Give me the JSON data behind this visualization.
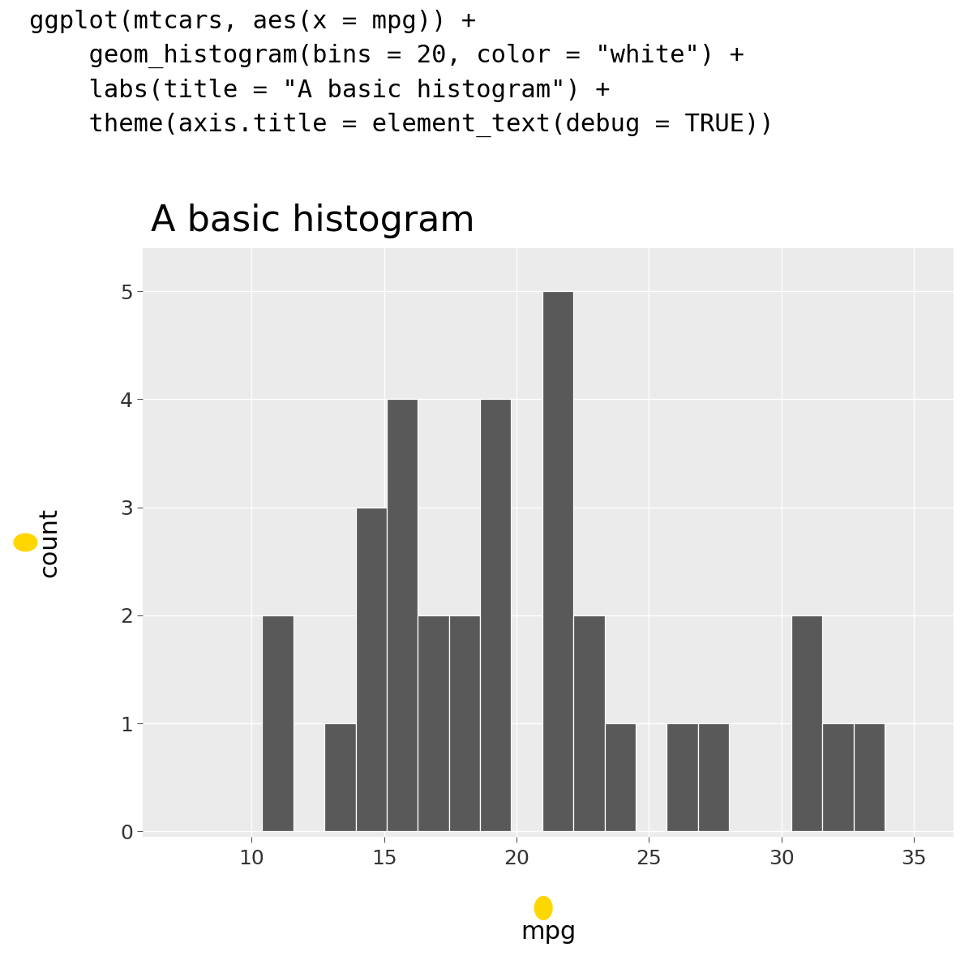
{
  "code_lines": [
    "ggplot(mtcars, aes(x = mpg)) +",
    "    geom_histogram(bins = 20, color = \"white\") +",
    "    labs(title = \"A basic histogram\") +",
    "    theme(axis.title = element_text(debug = TRUE))"
  ],
  "title": "A basic histogram",
  "xlabel": "mpg",
  "ylabel": "count",
  "bar_color": "#595959",
  "bar_edge_color": "white",
  "panel_bg": "#EBEBEB",
  "plot_bg": "#FFFFFF",
  "grid_color": "#FFFFFF",
  "ylabel_bg": "#FAFAE8",
  "xlabel_bg": "#FAFAE8",
  "dot_color": "#FFD700",
  "xlim": [
    5.9,
    36.5
  ],
  "ylim": [
    -0.05,
    5.4
  ],
  "xticks": [
    10,
    15,
    20,
    25,
    30,
    35
  ],
  "yticks": [
    0,
    1,
    2,
    3,
    4,
    5
  ],
  "mpg_data": [
    21.0,
    21.0,
    22.8,
    21.4,
    18.7,
    18.1,
    14.3,
    24.4,
    22.8,
    19.2,
    17.8,
    16.4,
    17.3,
    15.2,
    10.4,
    10.4,
    14.7,
    32.4,
    30.4,
    33.9,
    21.5,
    15.5,
    15.2,
    13.3,
    19.2,
    27.3,
    26.0,
    30.4,
    15.8,
    19.7,
    15.0,
    21.4
  ],
  "nbins": 20
}
